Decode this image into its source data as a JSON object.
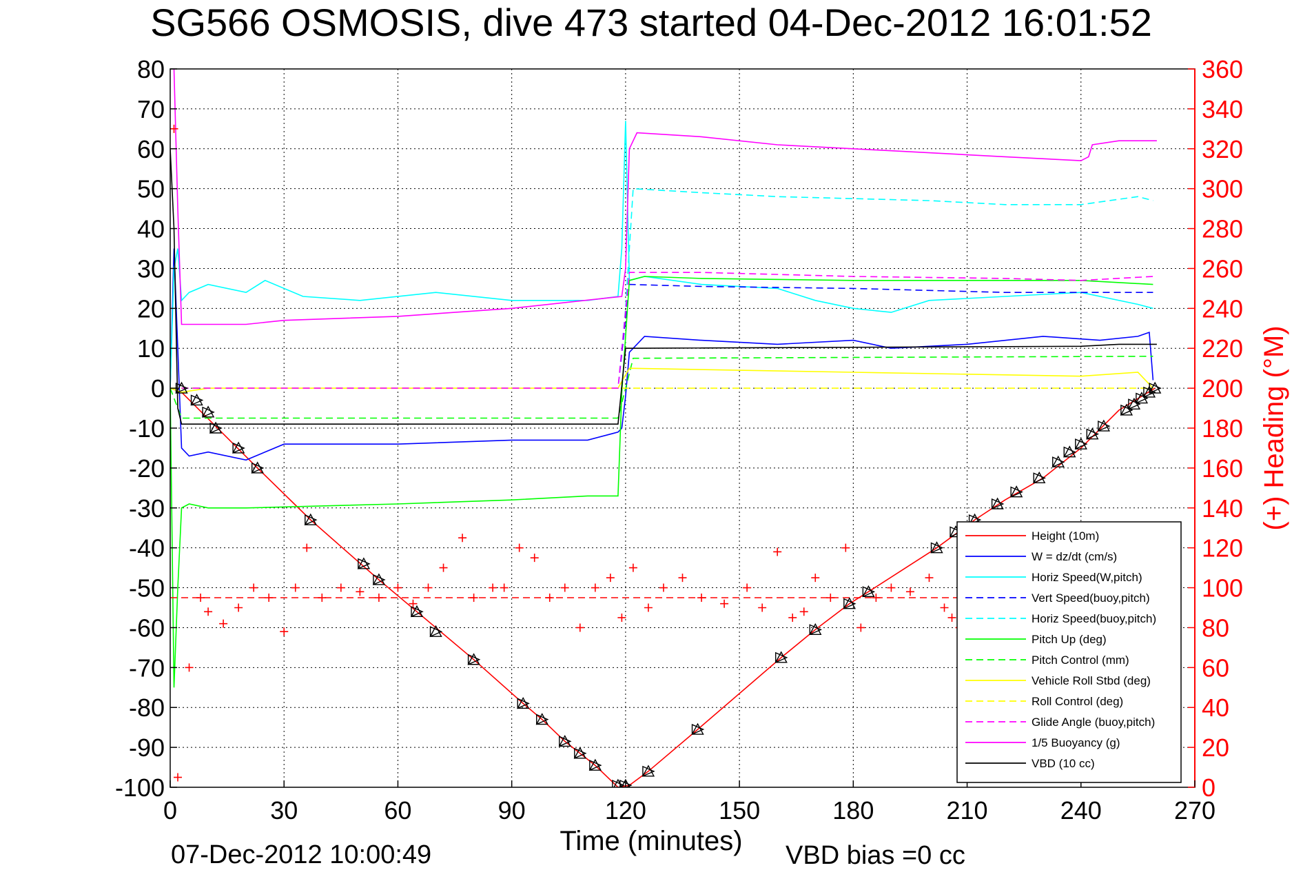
{
  "chart_data": {
    "type": "line",
    "title": "SG566 OSMOSIS, dive 473 started 04-Dec-2012 16:01:52",
    "xlabel": "Time (minutes)",
    "ylabel_right": "(+) Heading (°M)",
    "xlim": [
      0,
      270
    ],
    "ylim_left": [
      -100,
      80
    ],
    "ylim_right": [
      0,
      360
    ],
    "x_ticks": [
      0,
      30,
      60,
      90,
      120,
      150,
      180,
      210,
      240,
      270
    ],
    "y_ticks_left": [
      -100,
      -90,
      -80,
      -70,
      -60,
      -50,
      -40,
      -30,
      -20,
      -10,
      0,
      10,
      20,
      30,
      40,
      50,
      60,
      70,
      80
    ],
    "y_ticks_right": [
      0,
      20,
      40,
      60,
      80,
      100,
      120,
      140,
      160,
      180,
      200,
      220,
      240,
      260,
      280,
      300,
      320,
      340,
      360
    ],
    "grid": true,
    "legend_position": "lower-right",
    "footer_left": "07-Dec-2012 10:00:49",
    "footer_right": "VBD bias =0 cc",
    "series": [
      {
        "name": "Height (10m)",
        "color": "#ff0000",
        "style": "solid",
        "axis": "left",
        "x": [
          0,
          3,
          23,
          37,
          55,
          65,
          80,
          93,
          98,
          104,
          108,
          112,
          118,
          121,
          126,
          139,
          161,
          170,
          179,
          184,
          202,
          212,
          220,
          230,
          240,
          250,
          259.5
        ],
        "y": [
          0,
          -1,
          -20,
          -33,
          -48,
          -56,
          -68,
          -79,
          -83,
          -88.5,
          -91.5,
          -94.5,
          -100,
          -99.5,
          -96,
          -85.5,
          -67.5,
          -60.5,
          -54,
          -51,
          -40,
          -33,
          -28,
          -22.5,
          -15,
          -5.5,
          0
        ]
      },
      {
        "name": "W = dz/dt (cm/s)",
        "color": "#0000ff",
        "style": "solid",
        "axis": "left",
        "x": [
          0,
          1,
          2,
          3,
          5,
          10,
          20,
          30,
          60,
          90,
          110,
          118,
          119,
          120,
          121,
          125,
          140,
          160,
          180,
          190,
          210,
          230,
          245,
          255,
          258,
          259
        ],
        "y": [
          0,
          35,
          10,
          -15,
          -17,
          -16,
          -18,
          -14,
          -14,
          -13,
          -13,
          -11,
          -10,
          -2,
          9,
          13,
          12,
          11,
          12,
          10,
          11,
          13,
          12,
          13,
          14,
          2
        ]
      },
      {
        "name": "Horiz Speed(W,pitch)",
        "color": "#00ffff",
        "style": "solid",
        "axis": "left",
        "x": [
          0,
          1,
          2,
          3,
          5,
          10,
          20,
          25,
          35,
          50,
          70,
          90,
          110,
          118,
          119,
          120,
          121,
          125,
          140,
          160,
          170,
          180,
          190,
          200,
          220,
          240,
          255,
          259
        ],
        "y": [
          0,
          30,
          35,
          22,
          24,
          26,
          24,
          27,
          23,
          22,
          24,
          22,
          22,
          23,
          35,
          67,
          27,
          28,
          26,
          25,
          22,
          20,
          19,
          22,
          23,
          24,
          21,
          20
        ]
      },
      {
        "name": "Vert Speed(buoy,pitch)",
        "color": "#0000ff",
        "style": "dashed",
        "axis": "left",
        "x": [
          3,
          118,
          121,
          140,
          180,
          220,
          259
        ],
        "y": [
          0,
          0,
          26,
          25.5,
          25,
          24,
          24
        ]
      },
      {
        "name": "Horiz Speed(buoy,pitch)",
        "color": "#00ffff",
        "style": "dashed",
        "axis": "left",
        "x": [
          3,
          118,
          120,
          122,
          140,
          160,
          200,
          220,
          240,
          255,
          259
        ],
        "y": [
          0,
          0,
          20,
          50,
          49,
          48,
          47,
          46,
          46,
          48,
          47
        ]
      },
      {
        "name": "Pitch Up (deg)",
        "color": "#00ff00",
        "style": "solid",
        "axis": "left",
        "x": [
          0,
          1,
          2,
          3,
          5,
          10,
          20,
          60,
          90,
          110,
          118,
          119,
          121,
          125,
          140,
          180,
          220,
          240,
          259
        ],
        "y": [
          0,
          -75,
          -50,
          -30,
          -29,
          -30,
          -30,
          -29,
          -28,
          -27,
          -27,
          -1,
          27,
          28,
          27.5,
          27,
          27,
          27,
          26
        ]
      },
      {
        "name": "Pitch Control (mm)",
        "color": "#00ff00",
        "style": "dashed",
        "axis": "left",
        "x": [
          0,
          3,
          118,
          120,
          122,
          259
        ],
        "y": [
          0,
          -7.5,
          -7.5,
          0,
          7.5,
          8
        ]
      },
      {
        "name": "Vehicle Roll Stbd (deg)",
        "color": "#ffff00",
        "style": "solid",
        "axis": "left",
        "x": [
          0,
          3,
          10,
          60,
          118,
          121,
          180,
          240,
          255,
          259
        ],
        "y": [
          0,
          -1,
          0,
          0,
          0,
          5,
          4,
          3,
          4,
          0
        ]
      },
      {
        "name": "Roll Control (deg)",
        "color": "#ffff00",
        "style": "dashed",
        "axis": "left",
        "x": [
          0,
          259
        ],
        "y": [
          0,
          0
        ]
      },
      {
        "name": "Glide Angle (buoy,pitch)",
        "color": "#ff00ff",
        "style": "dashed",
        "axis": "left",
        "x": [
          3,
          118,
          121,
          140,
          180,
          220,
          240,
          259
        ],
        "y": [
          0,
          0,
          29,
          29,
          28,
          27.5,
          27,
          28
        ]
      },
      {
        "name": "1/5 Buoyancy (g)",
        "color": "#ff00ff",
        "style": "solid",
        "axis": "left",
        "x": [
          1,
          2,
          3,
          20,
          30,
          60,
          90,
          119,
          120,
          121,
          123,
          140,
          160,
          180,
          200,
          220,
          240,
          242,
          243,
          250,
          260
        ],
        "y": [
          80,
          45,
          16,
          16,
          17,
          18,
          20,
          23,
          30,
          60,
          64,
          63,
          61,
          60,
          59,
          58,
          57,
          58,
          61,
          62,
          62
        ]
      },
      {
        "name": "VBD (10 cc)",
        "color": "#000000",
        "style": "solid",
        "axis": "left",
        "x": [
          0,
          1,
          2,
          3,
          117,
          118,
          120,
          122,
          240,
          250,
          260
        ],
        "y": [
          60,
          40,
          -5,
          -9,
          -9,
          -9,
          10,
          10,
          10.5,
          11,
          11
        ]
      },
      {
        "name": "Heading",
        "color": "#ff0000",
        "style": "markers",
        "axis": "right",
        "x": [
          1,
          2,
          5,
          8,
          10,
          14,
          18,
          22,
          26,
          30,
          33,
          36,
          40,
          45,
          50,
          55,
          60,
          64,
          68,
          72,
          77,
          80,
          85,
          88,
          92,
          96,
          100,
          104,
          108,
          112,
          116,
          119,
          122,
          126,
          130,
          135,
          140,
          146,
          152,
          156,
          160,
          164,
          167,
          170,
          174,
          178,
          182,
          186,
          190,
          195,
          200,
          204,
          206,
          208
        ],
        "y": [
          330,
          5,
          60,
          95,
          88,
          82,
          90,
          100,
          95,
          78,
          100,
          120,
          95,
          100,
          98,
          95,
          100,
          92,
          100,
          110,
          125,
          95,
          100,
          100,
          120,
          115,
          95,
          100,
          80,
          100,
          105,
          85,
          110,
          90,
          100,
          105,
          95,
          92,
          100,
          90,
          118,
          85,
          88,
          105,
          95,
          120,
          80,
          95,
          100,
          98,
          105,
          90,
          85,
          80
        ]
      },
      {
        "name": "Mean Heading",
        "color": "#ff0000",
        "style": "dashed",
        "axis": "right",
        "x": [
          0,
          260
        ],
        "y": [
          95,
          95
        ]
      },
      {
        "name": "Depth markers",
        "color": "#000000",
        "style": "triangles",
        "axis": "left",
        "x": [
          3,
          7,
          10,
          12,
          18,
          23,
          37,
          51,
          55,
          65,
          70,
          80,
          93,
          98,
          104,
          108,
          112,
          118,
          120,
          126,
          139,
          161,
          170,
          179,
          184,
          202,
          207,
          212,
          218,
          223,
          229,
          234,
          237,
          240,
          243,
          246,
          252,
          254,
          256,
          258,
          259.5
        ],
        "y": [
          0,
          -3,
          -6,
          -10,
          -15,
          -20,
          -33,
          -44,
          -48,
          -56,
          -61,
          -68,
          -79,
          -83,
          -88.5,
          -91.5,
          -94.5,
          -99.5,
          -99.5,
          -96,
          -85.5,
          -67.5,
          -60.5,
          -54,
          -51,
          -40,
          -36,
          -33,
          -29,
          -26,
          -22.5,
          -18.5,
          -16,
          -14,
          -11.5,
          -9.5,
          -5.5,
          -4,
          -2.5,
          -1,
          0
        ]
      }
    ]
  }
}
